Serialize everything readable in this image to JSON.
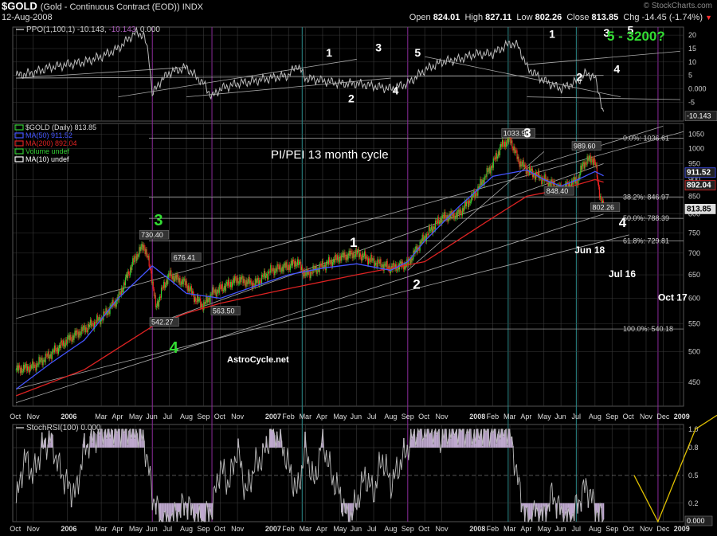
{
  "header": {
    "ticker": "$GOLD",
    "description": "(Gold - Continuous Contract (EOD))  INDX",
    "date": "12-Aug-2008",
    "source": "© StockCharts.com",
    "open_label": "Open",
    "open": "824.01",
    "high_label": "High",
    "high": "827.11",
    "low_label": "Low",
    "low": "802.26",
    "close_label": "Close",
    "close": "813.85",
    "chg_label": "Chg",
    "chg": "-14.45 (-1.74%)",
    "chg_arrow": "▼"
  },
  "colors": {
    "background": "#000000",
    "grid": "#3a3a3a",
    "axis_text": "#cfcfcf",
    "candle_up": "#33cc33",
    "candle_down": "#ee2222",
    "ma50": "#4455ff",
    "ma200": "#dd2222",
    "ppo": "#bbbbbb",
    "stoch": "#bbbbbb",
    "stoch_fill": "#bfa9cf",
    "trendline": "#aaaaaa",
    "wave_green": "#33dd33",
    "wave_white": "#ffffff",
    "projection": "#e0c000",
    "vline_teal": "#2a8a8a",
    "vline_purple": "#8a2a9a"
  },
  "x_axis": {
    "labels": [
      "Oct",
      "Nov",
      "2006",
      "Mar",
      "Apr",
      "May",
      "Jun",
      "Jul",
      "Aug",
      "Sep",
      "Oct",
      "Nov",
      "2007",
      "Feb",
      "Mar",
      "Apr",
      "May",
      "Jun",
      "Jul",
      "Aug",
      "Sep",
      "Oct",
      "Nov",
      "2008",
      "Feb",
      "Mar",
      "Apr",
      "May",
      "Jun",
      "Jul",
      "Aug",
      "Sep",
      "Oct",
      "Nov",
      "Dec",
      "2009"
    ],
    "months_from_oct2005": [
      0,
      1,
      3,
      5,
      6,
      7,
      8,
      9,
      10,
      11,
      12,
      13,
      15,
      16,
      17,
      18,
      19,
      20,
      21,
      22,
      23,
      24,
      25,
      27,
      28,
      29,
      30,
      31,
      32,
      33,
      34,
      35,
      36,
      37,
      38,
      39
    ]
  },
  "chart_data": [
    {
      "type": "line",
      "panel": "ppo",
      "title": "PPO(1,100,1) -10.143, -10.143, 0.000",
      "legend": {
        "label": "PPO(1,100,1)",
        "value1": "-10.143",
        "value2": "-10.143",
        "value3": "0.000"
      },
      "y_ticks": [
        -5,
        0,
        5,
        10,
        15,
        20
      ],
      "y_tick_labels": [
        "-5",
        "0.000",
        "5",
        "10",
        "15",
        "20"
      ],
      "last_value_label": "-10.143",
      "ylim": [
        -12,
        23
      ],
      "series": [
        {
          "x_month": [
            0,
            1,
            2,
            3,
            4,
            5,
            6,
            7,
            7.5,
            7.8,
            8,
            8.5,
            9,
            10,
            11,
            11.5,
            12,
            13,
            14,
            15,
            16,
            16.5,
            17,
            18,
            19,
            20,
            21,
            22,
            23,
            24,
            25,
            26,
            27,
            28,
            29,
            29.5,
            30,
            31,
            32,
            33,
            33.5,
            34,
            34.3,
            34.5
          ],
          "values": [
            5,
            6,
            8,
            9,
            10,
            12,
            15,
            21,
            20,
            12,
            -2,
            3,
            6,
            8,
            2,
            -3,
            0,
            2,
            3,
            4,
            5,
            9,
            4,
            3,
            2,
            2,
            1,
            0,
            2,
            7,
            10,
            11,
            13,
            13,
            17,
            16,
            8,
            3,
            0,
            3,
            6,
            4,
            -3,
            -10.143
          ]
        }
      ],
      "annotations": [
        {
          "text": "1",
          "x_month": 18.2,
          "y": 12
        },
        {
          "text": "2",
          "x_month": 19.5,
          "y": -5
        },
        {
          "text": "3",
          "x_month": 21.1,
          "y": 14
        },
        {
          "text": "4",
          "x_month": 22.1,
          "y": -2
        },
        {
          "text": "5",
          "x_month": 23.4,
          "y": 12
        },
        {
          "text": "1",
          "x_month": 31.3,
          "y": 19
        },
        {
          "text": "2",
          "x_month": 32.9,
          "y": 3
        },
        {
          "text": "3",
          "x_month": 34.5,
          "y": 19.5
        },
        {
          "text": "4",
          "x_month": 35.1,
          "y": 6
        },
        {
          "text": "5",
          "x_month": 35.9,
          "y": 20.5
        }
      ],
      "corner_label": "5 - 3200?"
    },
    {
      "type": "candlestick",
      "panel": "price",
      "title": "PI/PEI 13 month cycle",
      "legend": [
        {
          "label": "$GOLD (Daily)",
          "value": "813.85"
        },
        {
          "label": "MA(50)",
          "value": "911.52"
        },
        {
          "label": "MA(200)",
          "value": "892.04"
        },
        {
          "label": "Volume",
          "value": "undef"
        },
        {
          "label": "MA(10)",
          "value": "undef"
        }
      ],
      "y_ticks": [
        450,
        500,
        550,
        600,
        650,
        700,
        750,
        800,
        850,
        900,
        950,
        1000,
        1050
      ],
      "yscale": "log",
      "ylim": [
        415,
        1090
      ],
      "close_series": {
        "x_month": [
          0,
          1,
          2,
          3,
          4,
          5,
          6,
          7,
          7.5,
          7.9,
          8.2,
          8.6,
          9,
          9.5,
          10,
          10.5,
          11,
          11.5,
          12,
          13,
          14,
          15,
          16,
          16.5,
          17,
          18,
          19,
          20,
          21,
          22,
          23,
          24,
          25,
          26,
          27,
          28,
          28.5,
          29,
          29.5,
          30,
          31,
          32,
          33,
          33.3,
          33.6,
          33.8,
          34,
          34.1,
          34.2,
          34.3,
          34.4,
          34.5
        ],
        "values": [
          470,
          475,
          495,
          520,
          540,
          560,
          600,
          690,
          720,
          660,
          580,
          620,
          650,
          640,
          630,
          600,
          585,
          610,
          620,
          640,
          630,
          660,
          670,
          680,
          650,
          670,
          690,
          700,
          680,
          665,
          675,
          740,
          790,
          800,
          860,
          950,
          1010,
          1033.9,
          960,
          930,
          900,
          870,
          900,
          950,
          960,
          970,
          950,
          920,
          880,
          850,
          830,
          813.85
        ]
      },
      "ma50": {
        "x_month": [
          0,
          2,
          4,
          6,
          8,
          9,
          10,
          12,
          14,
          16,
          18,
          20,
          22,
          23,
          24,
          26,
          28,
          30,
          31,
          32,
          33,
          34,
          34.5
        ],
        "values": [
          440,
          480,
          520,
          600,
          670,
          640,
          610,
          600,
          625,
          650,
          665,
          675,
          660,
          680,
          730,
          820,
          910,
          930,
          900,
          880,
          900,
          925,
          911.52
        ]
      },
      "ma200": {
        "x_month": [
          0,
          4,
          8,
          10,
          12,
          16,
          20,
          24,
          28,
          30,
          32,
          34,
          34.5
        ],
        "values": [
          430,
          470,
          545,
          570,
          590,
          620,
          650,
          680,
          790,
          850,
          870,
          900,
          892.04
        ]
      },
      "fibonacci": [
        {
          "label": "0.0%: 1036.61",
          "value": 1036.61
        },
        {
          "label": "38.2%: 846.97",
          "value": 846.97
        },
        {
          "label": "50.0%: 788.39",
          "value": 788.39
        },
        {
          "label": "61.8%: 729.81",
          "value": 729.81
        },
        {
          "label": "100.0%: 540.18",
          "value": 540.18
        }
      ],
      "price_labels": [
        {
          "text": "730.40",
          "x_month": 8.1,
          "y": 730.4
        },
        {
          "text": "676.41",
          "x_month": 10.0,
          "y": 676.41
        },
        {
          "text": "542.27",
          "x_month": 8.7,
          "y": 542.27
        },
        {
          "text": "563.50",
          "x_month": 12.3,
          "y": 563.5
        },
        {
          "text": "1033.90",
          "x_month": 29.5,
          "y": 1033.9
        },
        {
          "text": "989.60",
          "x_month": 33.5,
          "y": 989.6
        },
        {
          "text": "848.40",
          "x_month": 31.9,
          "y": 848.4
        },
        {
          "text": "802.26",
          "x_month": 34.6,
          "y": 802.26
        }
      ],
      "right_labels": [
        {
          "text": "911.52",
          "value": 911.52
        },
        {
          "text": "892.04",
          "value": 892.04
        },
        {
          "text": "813.85",
          "value": 813.85
        }
      ],
      "wave_labels": [
        {
          "text": "3",
          "color": "green",
          "x_month": 8.1,
          "y": 770
        },
        {
          "text": "4",
          "color": "green",
          "x_month": 9.0,
          "y": 498
        },
        {
          "text": "1",
          "color": "white",
          "x_month": 19.6,
          "y": 715
        },
        {
          "text": "2",
          "color": "white",
          "x_month": 23.3,
          "y": 620
        },
        {
          "text": "3",
          "color": "white",
          "x_month": 29.8,
          "y": 1040
        },
        {
          "text": "4",
          "color": "white",
          "x_month": 35.4,
          "y": 765
        }
      ],
      "date_annotations": [
        {
          "text": "Jun 18",
          "x_month": 32.8,
          "y": 700
        },
        {
          "text": "Jul 16",
          "x_month": 34.8,
          "y": 645
        },
        {
          "text": "Oct 17",
          "x_month": 37.7,
          "y": 595
        }
      ],
      "credit": "AstroCycle.net"
    },
    {
      "type": "line",
      "panel": "stochrsi",
      "title": "StochRSI(100) 0.000",
      "legend": {
        "label": "StochRSI(100)",
        "value": "0.000"
      },
      "y_ticks": [
        0.2,
        0.5,
        0.8,
        1.0
      ],
      "y_tick_labels": [
        "0.2",
        "0.5",
        "0.8",
        "1.0"
      ],
      "last_value_label": "0.000",
      "ylim": [
        0,
        1.05
      ],
      "series": [
        {
          "x_month": [
            0,
            0.5,
            1,
            1.5,
            2,
            2.5,
            3,
            3.5,
            4,
            4.5,
            5,
            5.5,
            6,
            6.5,
            7,
            7.5,
            8,
            8.5,
            9,
            9.5,
            10,
            10.5,
            11,
            11.5,
            12,
            12.5,
            13,
            13.5,
            14,
            14.5,
            15,
            15.5,
            16,
            16.5,
            17,
            17.5,
            18,
            18.5,
            19,
            19.5,
            20,
            20.5,
            21,
            21.5,
            22,
            22.5,
            23,
            23.5,
            24,
            24.5,
            25,
            25.5,
            26,
            26.5,
            27,
            27.5,
            28,
            28.5,
            29,
            29.5,
            30,
            30.5,
            31,
            31.5,
            32,
            32.5,
            33,
            33.5,
            34,
            34.3,
            34.5
          ],
          "values": [
            0.2,
            0.7,
            0.5,
            0.8,
            0.9,
            0.6,
            0.4,
            0.3,
            0.8,
            0.9,
            1.0,
            1.0,
            1.0,
            1.0,
            1.0,
            0.9,
            0.3,
            0.0,
            0.0,
            0.1,
            0.2,
            0.05,
            0.0,
            0.15,
            0.6,
            0.4,
            0.8,
            0.3,
            0.6,
            0.7,
            1.0,
            0.9,
            0.6,
            0.3,
            0.8,
            0.4,
            0.9,
            0.5,
            0.3,
            0.0,
            0.2,
            0.5,
            0.3,
            0.7,
            0.4,
            0.6,
            0.8,
            1.0,
            1.0,
            1.0,
            0.9,
            1.0,
            1.0,
            1.0,
            0.95,
            1.0,
            1.0,
            1.0,
            1.0,
            0.4,
            0.0,
            0.1,
            0.05,
            0.3,
            0.1,
            0.0,
            0.2,
            0.4,
            0.15,
            0.05,
            0.0
          ]
        }
      ],
      "projection": {
        "x_month": [
          36.3,
          37.7,
          39.9
        ],
        "values": [
          0.5,
          0.0,
          1.0
        ]
      }
    }
  ]
}
